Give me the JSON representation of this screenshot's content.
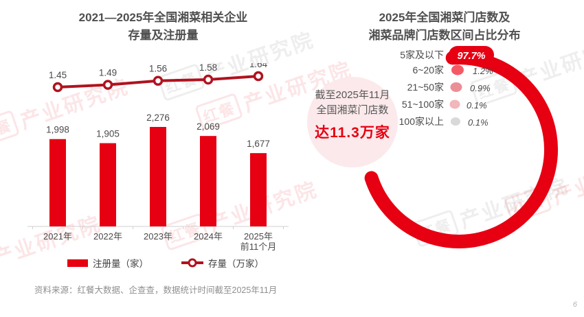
{
  "page": {
    "number": "6",
    "source_note": "资料来源：红餐大数据、企查查，数据统计时间截至2025年11月"
  },
  "watermark": {
    "logo": "红餐",
    "text": "产业研究院"
  },
  "colors": {
    "bar": "#E60012",
    "line": "#B0121F",
    "arc": "#E60012",
    "pill_bg": "#E60012",
    "pill_text": "#FFFFFF",
    "bubbles": [
      "#F45A66",
      "#EC8E96",
      "#F2B6BB",
      "#D9D9D9"
    ],
    "callout_bg": "#FBE9EB",
    "callout_accent": "#E60012",
    "axis": "#cfcfcf",
    "label_text": "#4a4a4a"
  },
  "left_chart": {
    "title_line1": "2021—2025年全国湘菜相关企业",
    "title_line2": "存量及注册量",
    "legend_bar": "注册量（家）",
    "legend_line": "存量（万家）"
  },
  "right_chart": {
    "title_line1": "2025年全国湘菜门店数及",
    "title_line2": "湘菜品牌门店数区间占比分布",
    "callout": {
      "line1": "截至2025年11月",
      "line2": "全国湘菜门店数",
      "line3": "达11.3万家"
    }
  },
  "chart_data": [
    {
      "type": "bar",
      "title": "2021—2025年全国湘菜相关企业存量及注册量",
      "categories": [
        "2021年",
        "2022年",
        "2023年",
        "2024年",
        "2025年|前11个月"
      ],
      "series": [
        {
          "name": "注册量（家）",
          "type": "bar",
          "values": [
            1998,
            1905,
            2276,
            2069,
            1677
          ]
        },
        {
          "name": "存量（万家）",
          "type": "line",
          "values": [
            1.45,
            1.49,
            1.56,
            1.58,
            1.64
          ]
        }
      ],
      "ylim_bar": [
        0,
        2500
      ],
      "ylim_line": [
        1.4,
        1.7
      ],
      "grid": false,
      "legend_position": "bottom"
    },
    {
      "type": "pie",
      "title": "2025年全国湘菜门店数及湘菜品牌门店数区间占比分布",
      "categories": [
        "5家及以下",
        "6~20家",
        "21~50家",
        "51~100家",
        "100家以上"
      ],
      "values": [
        97.7,
        1.2,
        0.9,
        0.1,
        0.1
      ],
      "unit": "%",
      "annotation": "截至2025年11月全国湘菜门店数达11.3万家",
      "legend_position": "upper-left"
    }
  ]
}
